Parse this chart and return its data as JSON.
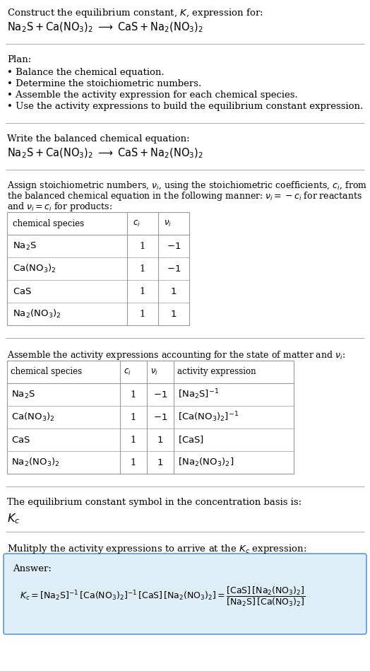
{
  "title_line1": "Construct the equilibrium constant, $K$, expression for:",
  "reaction_equation": "$\\mathrm{Na_2S + Ca(NO_3)_2 \\;\\longrightarrow\\; CaS + Na_2(NO_3)_2}$",
  "plan_header": "Plan:",
  "plan_items": [
    "• Balance the chemical equation.",
    "• Determine the stoichiometric numbers.",
    "• Assemble the activity expression for each chemical species.",
    "• Use the activity expressions to build the equilibrium constant expression."
  ],
  "balanced_header": "Write the balanced chemical equation:",
  "balanced_eq": "$\\mathrm{Na_2S + Ca(NO_3)_2 \\;\\longrightarrow\\; CaS + Na_2(NO_3)_2}$",
  "stoich_intro1": "Assign stoichiometric numbers, $\\nu_i$, using the stoichiometric coefficients, $c_i$, from",
  "stoich_intro2": "the balanced chemical equation in the following manner: $\\nu_i = -c_i$ for reactants",
  "stoich_intro3": "and $\\nu_i = c_i$ for products:",
  "table1_headers": [
    "chemical species",
    "$c_i$",
    "$\\nu_i$"
  ],
  "table1_rows": [
    [
      "$\\mathrm{Na_2S}$",
      "1",
      "$-1$"
    ],
    [
      "$\\mathrm{Ca(NO_3)_2}$",
      "1",
      "$-1$"
    ],
    [
      "$\\mathrm{CaS}$",
      "1",
      "$1$"
    ],
    [
      "$\\mathrm{Na_2(NO_3)_2}$",
      "1",
      "$1$"
    ]
  ],
  "activity_intro": "Assemble the activity expressions accounting for the state of matter and $\\nu_i$:",
  "table2_headers": [
    "chemical species",
    "$c_i$",
    "$\\nu_i$",
    "activity expression"
  ],
  "table2_rows": [
    [
      "$\\mathrm{Na_2S}$",
      "1",
      "$-1$",
      "$[\\mathrm{Na_2S}]^{-1}$"
    ],
    [
      "$\\mathrm{Ca(NO_3)_2}$",
      "1",
      "$-1$",
      "$[\\mathrm{Ca(NO_3)_2}]^{-1}$"
    ],
    [
      "$\\mathrm{CaS}$",
      "1",
      "$1$",
      "$[\\mathrm{CaS}]$"
    ],
    [
      "$\\mathrm{Na_2(NO_3)_2}$",
      "1",
      "$1$",
      "$[\\mathrm{Na_2(NO_3)_2}]$"
    ]
  ],
  "kc_text": "The equilibrium constant symbol in the concentration basis is:",
  "kc_symbol": "$K_c$",
  "multiply_text": "Mulitply the activity expressions to arrive at the $K_c$ expression:",
  "answer_label": "Answer:",
  "answer_eq_line1": "$K_c = [\\mathrm{Na_2S}]^{-1}\\,[\\mathrm{Ca(NO_3)_2}]^{-1}\\,[\\mathrm{CaS}]\\,[\\mathrm{Na_2(NO_3)_2}] = \\dfrac{[\\mathrm{CaS}]\\,[\\mathrm{Na_2(NO_3)_2}]}{[\\mathrm{Na_2S}]\\,[\\mathrm{Ca(NO_3)_2}]}$",
  "bg_color": "#ffffff",
  "text_color": "#000000",
  "table_border_color": "#999999",
  "answer_box_color": "#deeef7",
  "answer_box_border": "#5b9bd5",
  "separator_color": "#aaaaaa"
}
